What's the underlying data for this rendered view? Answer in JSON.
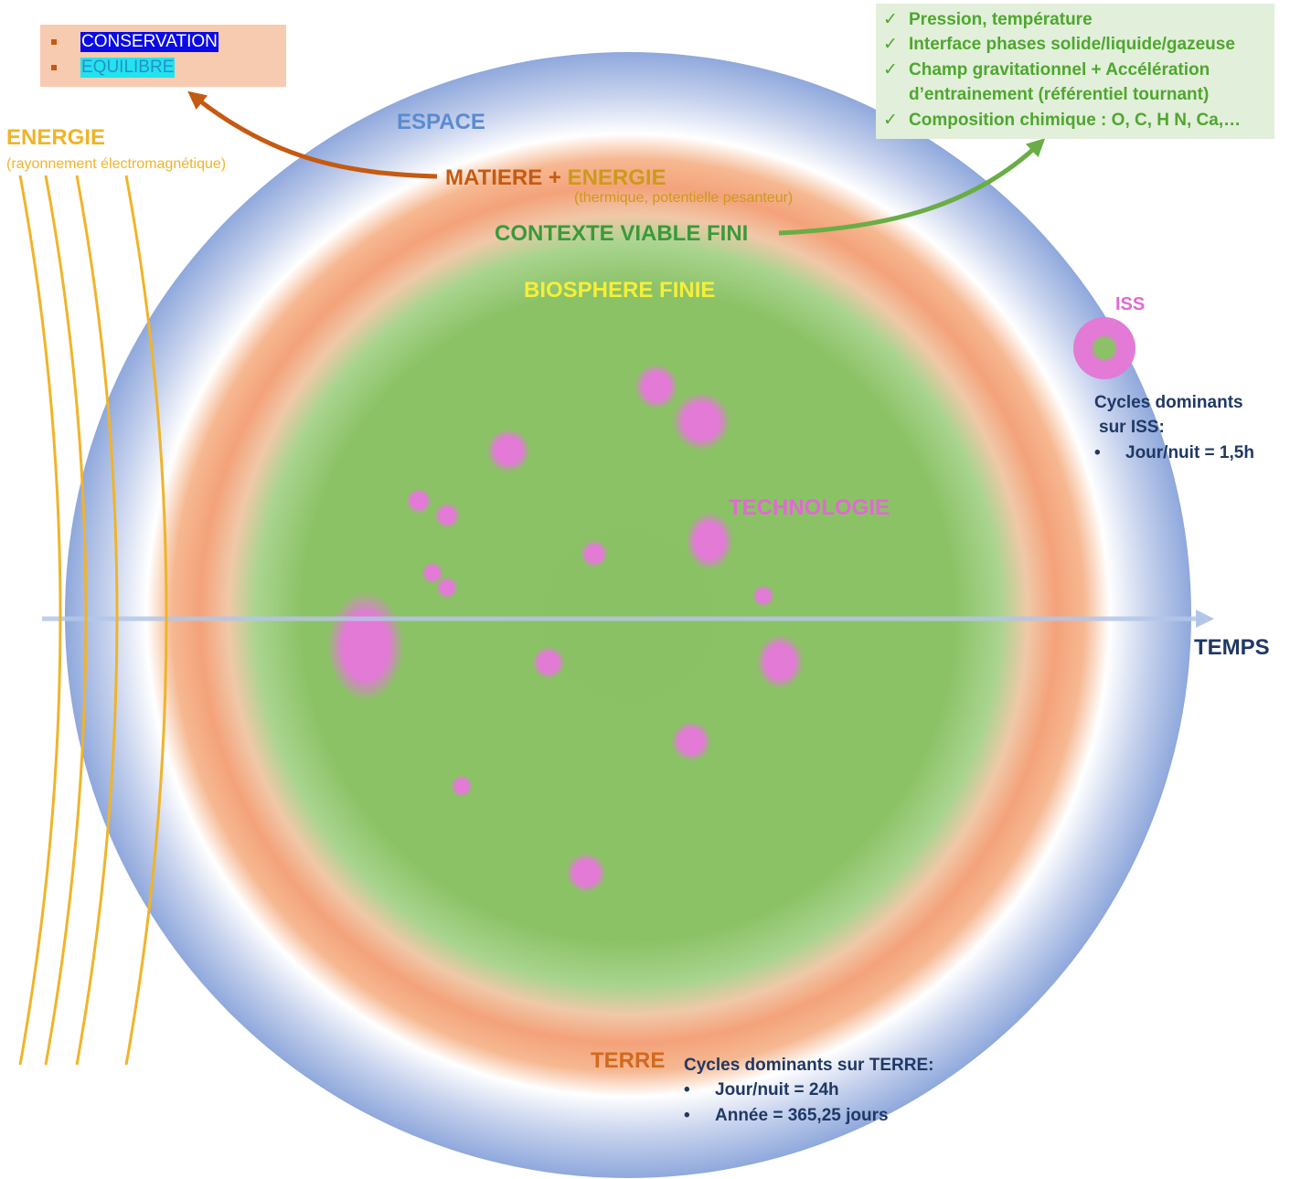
{
  "colors": {
    "space_blue": "#8fa8dc",
    "matter_orange": "#f4a27a",
    "biosphere_green": "#8cc266",
    "technology_pink": "#e27ad6",
    "energy_yellow": "#f0b429",
    "arrow_brown": "#c55a11",
    "arrow_green": "#6aad46",
    "time_arrow": "#b4c6e7"
  },
  "energy": {
    "title": "ENERGIE",
    "subtitle": "(rayonnement  électromagnétique)"
  },
  "conservation_box": {
    "items": [
      {
        "label": "CONSERVATION"
      },
      {
        "label": "EQUILIBRE"
      }
    ]
  },
  "checklist_box": {
    "items": [
      "Pression, température",
      "Interface phases solide/liquide/gazeuse",
      "Champ gravitationnel + Accélération",
      "Composition chimique : O, C, H N, Ca,…"
    ],
    "continuation": "d’entrainement (référentiel tournant)"
  },
  "labels": {
    "espace": "ESPACE",
    "matiere": "MATIERE",
    "plus": " + ",
    "energie": "ENERGIE",
    "energie_note": "(thermique, potentielle pesanteur)",
    "contexte": "CONTEXTE VIABLE FINI",
    "biosphere": "BIOSPHERE FINIE",
    "technologie": "TECHNOLOGIE",
    "terre": "TERRE",
    "temps": "TEMPS",
    "iss": "ISS"
  },
  "iss_cycles": {
    "title_line1": "Cycles dominants",
    "title_line2": "sur ISS:",
    "items": [
      "Jour/nuit  = 1,5h"
    ]
  },
  "earth_cycles": {
    "title": "Cycles dominants sur TERRE:",
    "items": [
      "Jour/nuit  = 24h",
      "Année = 365,25 jours"
    ]
  }
}
